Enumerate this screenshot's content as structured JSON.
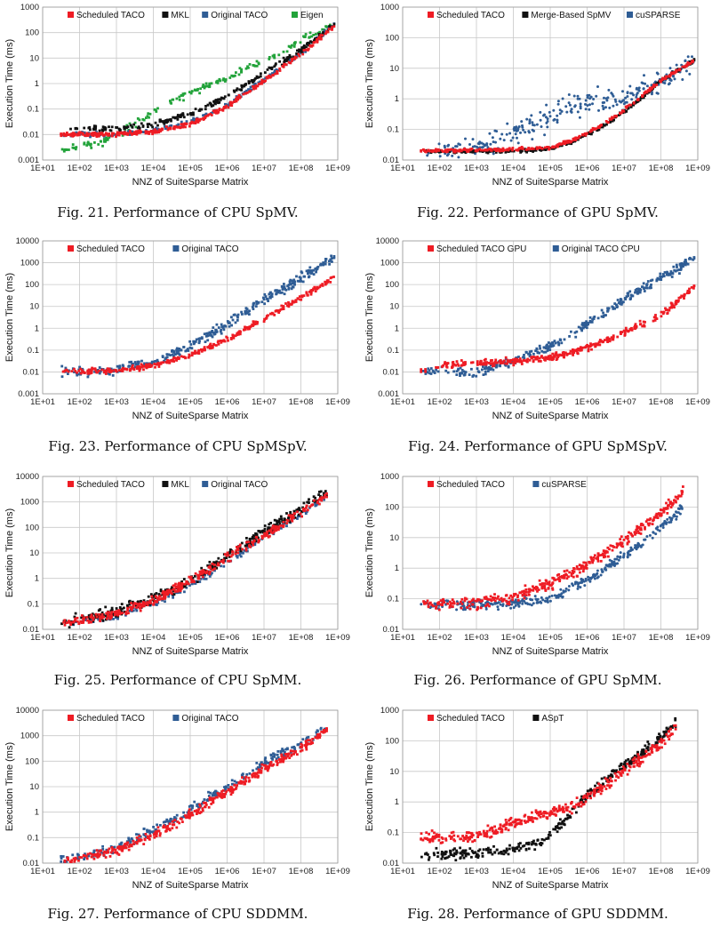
{
  "colors": {
    "red": "#ee1c24",
    "black": "#111111",
    "blue": "#2f5d95",
    "green": "#22a33a"
  },
  "chart_data": [
    {
      "type": "scatter",
      "id": "fig21",
      "caption": "Fig. 21.  Performance of CPU SpMV.",
      "xlabel": "NNZ of SuiteSparse Matrix",
      "ylabel": "Execution Time (ms)",
      "x_ticks": [
        "1E+01",
        "1E+02",
        "1E+03",
        "1E+04",
        "1E+05",
        "1E+06",
        "1E+07",
        "1E+08",
        "1E+09"
      ],
      "y_ticks": [
        "0.001",
        "0.01",
        "0.1",
        "1",
        "10",
        "100",
        "1000"
      ],
      "xlim_log10": [
        1,
        9
      ],
      "ylim_log10": [
        -3,
        3
      ],
      "series": [
        {
          "name": "Scheduled TACO",
          "color": "red",
          "marker": "square",
          "curve": [
            [
              1.5,
              -2.0
            ],
            [
              3,
              -1.98
            ],
            [
              4,
              -1.9
            ],
            [
              5,
              -1.6
            ],
            [
              6,
              -0.9
            ],
            [
              7,
              0.1
            ],
            [
              8,
              1.15
            ],
            [
              8.9,
              2.25
            ]
          ],
          "spread": 0.09,
          "n": 340
        },
        {
          "name": "MKL",
          "color": "black",
          "marker": "square",
          "curve": [
            [
              1.5,
              -1.78
            ],
            [
              3,
              -1.76
            ],
            [
              4,
              -1.6
            ],
            [
              5,
              -1.2
            ],
            [
              6,
              -0.5
            ],
            [
              7,
              0.4
            ],
            [
              8,
              1.3
            ],
            [
              8.9,
              2.3
            ]
          ],
          "spread": 0.1,
          "n": 240
        },
        {
          "name": "Original TACO",
          "color": "blue",
          "marker": "square",
          "curve": [
            [
              1.5,
              -2.0
            ],
            [
              3,
              -1.97
            ],
            [
              4,
              -1.85
            ],
            [
              5,
              -1.5
            ],
            [
              6,
              -0.85
            ],
            [
              7,
              0.15
            ],
            [
              8,
              1.2
            ],
            [
              8.9,
              2.3
            ]
          ],
          "spread": 0.09,
          "n": 200
        },
        {
          "name": "Eigen",
          "color": "green",
          "marker": "square",
          "curve": [
            [
              1.5,
              -2.55
            ],
            [
              2.6,
              -2.35
            ],
            [
              3.5,
              -1.6
            ],
            [
              4.2,
              -0.9
            ],
            [
              5,
              -0.35
            ],
            [
              6,
              0.2
            ],
            [
              7,
              0.9
            ],
            [
              8,
              1.7
            ],
            [
              8.9,
              2.4
            ]
          ],
          "spread": 0.14,
          "n": 170
        }
      ]
    },
    {
      "type": "scatter",
      "id": "fig22",
      "caption": "Fig. 22.  Performance of GPU SpMV.",
      "xlabel": "NNZ of SuiteSparse Matrix",
      "ylabel": "Execution Time (ms)",
      "x_ticks": [
        "1E+01",
        "1E+02",
        "1E+03",
        "1E+04",
        "1E+05",
        "1E+06",
        "1E+07",
        "1E+08",
        "1E+09"
      ],
      "y_ticks": [
        "0.01",
        "0.1",
        "1",
        "10",
        "100",
        "1000"
      ],
      "xlim_log10": [
        1,
        9
      ],
      "ylim_log10": [
        -2,
        3
      ],
      "series": [
        {
          "name": "Scheduled TACO",
          "color": "red",
          "marker": "square",
          "curve": [
            [
              1.5,
              -1.7
            ],
            [
              3,
              -1.68
            ],
            [
              4,
              -1.66
            ],
            [
              5,
              -1.6
            ],
            [
              5.7,
              -1.3
            ],
            [
              6.5,
              -0.8
            ],
            [
              7.3,
              -0.1
            ],
            [
              8,
              0.6
            ],
            [
              8.9,
              1.25
            ]
          ],
          "spread": 0.05,
          "n": 320
        },
        {
          "name": "Merge-Based SpMV",
          "color": "black",
          "marker": "square",
          "curve": [
            [
              1.5,
              -1.72
            ],
            [
              3,
              -1.72
            ],
            [
              4,
              -1.7
            ],
            [
              5,
              -1.65
            ],
            [
              5.7,
              -1.35
            ],
            [
              6.5,
              -0.85
            ],
            [
              7.3,
              -0.15
            ],
            [
              8,
              0.6
            ],
            [
              8.9,
              1.25
            ]
          ],
          "spread": 0.05,
          "n": 300
        },
        {
          "name": "cuSPARSE",
          "color": "blue",
          "marker": "circle",
          "curve": [
            [
              1.5,
              -1.72
            ],
            [
              3,
              -1.6
            ],
            [
              4,
              -1.2
            ],
            [
              5,
              -0.6
            ],
            [
              5.7,
              -0.2
            ],
            [
              6.3,
              -0.1
            ],
            [
              7,
              0.0
            ],
            [
              8,
              0.6
            ],
            [
              8.9,
              1.25
            ]
          ],
          "spread": 0.38,
          "n": 260
        }
      ]
    },
    {
      "type": "scatter",
      "id": "fig23",
      "caption": "Fig. 23.  Performance of CPU SpMSpV.",
      "xlabel": "NNZ of SuiteSparse Matrix",
      "ylabel": "Execution Time (ms)",
      "x_ticks": [
        "1E+01",
        "1E+02",
        "1E+03",
        "1E+04",
        "1E+05",
        "1E+06",
        "1E+07",
        "1E+08",
        "1E+09"
      ],
      "y_ticks": [
        "0.001",
        "0.01",
        "0.1",
        "1",
        "10",
        "100",
        "1000",
        "10000"
      ],
      "xlim_log10": [
        1,
        9
      ],
      "ylim_log10": [
        -3,
        4
      ],
      "series": [
        {
          "name": "Scheduled TACO",
          "color": "red",
          "marker": "square",
          "curve": [
            [
              1.5,
              -2.0
            ],
            [
              3,
              -1.95
            ],
            [
              4,
              -1.7
            ],
            [
              5,
              -1.25
            ],
            [
              6,
              -0.5
            ],
            [
              7,
              0.45
            ],
            [
              8,
              1.4
            ],
            [
              8.9,
              2.3
            ]
          ],
          "spread": 0.12,
          "n": 330
        },
        {
          "name": "Original TACO",
          "color": "blue",
          "marker": "square",
          "curve": [
            [
              1.5,
              -2.0
            ],
            [
              3,
              -1.95
            ],
            [
              4,
              -1.55
            ],
            [
              5,
              -0.8
            ],
            [
              6,
              0.2
            ],
            [
              7,
              1.3
            ],
            [
              8,
              2.3
            ],
            [
              8.9,
              3.2
            ]
          ],
          "spread": 0.22,
          "n": 330
        }
      ]
    },
    {
      "type": "scatter",
      "id": "fig24",
      "caption": "Fig. 24.  Performance of GPU SpMSpV.",
      "xlabel": "NNZ of SuiteSparse Matrix",
      "ylabel": "Execution Time (ms)",
      "x_ticks": [
        "1E+01",
        "1E+02",
        "1E+03",
        "1E+04",
        "1E+05",
        "1E+06",
        "1E+07",
        "1E+08",
        "1E+09"
      ],
      "y_ticks": [
        "0.001",
        "0.01",
        "0.1",
        "1",
        "10",
        "100",
        "1000",
        "10000"
      ],
      "xlim_log10": [
        1,
        9
      ],
      "ylim_log10": [
        -3,
        4
      ],
      "series": [
        {
          "name": "Scheduled TACO GPU",
          "color": "red",
          "marker": "square",
          "curve": [
            [
              1.5,
              -1.95
            ],
            [
              2,
              -1.75
            ],
            [
              3,
              -1.6
            ],
            [
              4,
              -1.5
            ],
            [
              5,
              -1.35
            ],
            [
              6,
              -0.9
            ],
            [
              7,
              -0.2
            ],
            [
              8,
              0.6
            ],
            [
              8.9,
              1.9
            ]
          ],
          "spread": 0.15,
          "n": 340
        },
        {
          "name": "Original TACO CPU",
          "color": "blue",
          "marker": "square",
          "curve": [
            [
              1.5,
              -2.0
            ],
            [
              3,
              -1.95
            ],
            [
              4,
              -1.55
            ],
            [
              5,
              -0.8
            ],
            [
              6,
              0.2
            ],
            [
              7,
              1.3
            ],
            [
              8,
              2.3
            ],
            [
              8.9,
              3.2
            ]
          ],
          "spread": 0.22,
          "n": 330
        }
      ]
    },
    {
      "type": "scatter",
      "id": "fig25",
      "caption": "Fig. 25.  Performance of CPU SpMM.",
      "xlabel": "NNZ of SuiteSparse Matrix",
      "ylabel": "Execution Time (ms)",
      "x_ticks": [
        "1E+01",
        "1E+02",
        "1E+03",
        "1E+04",
        "1E+05",
        "1E+06",
        "1E+07",
        "1E+08",
        "1E+09"
      ],
      "y_ticks": [
        "0.01",
        "0.1",
        "1",
        "10",
        "100",
        "1000",
        "10000"
      ],
      "xlim_log10": [
        1,
        9
      ],
      "ylim_log10": [
        -2,
        4
      ],
      "series": [
        {
          "name": "Scheduled TACO",
          "color": "red",
          "marker": "square",
          "curve": [
            [
              1.5,
              -1.8
            ],
            [
              3,
              -1.4
            ],
            [
              4,
              -0.9
            ],
            [
              5,
              -0.1
            ],
            [
              6,
              0.8
            ],
            [
              7,
              1.7
            ],
            [
              8,
              2.6
            ],
            [
              8.7,
              3.3
            ]
          ],
          "spread": 0.18,
          "n": 360
        },
        {
          "name": "MKL",
          "color": "black",
          "marker": "square",
          "curve": [
            [
              1.5,
              -1.7
            ],
            [
              3,
              -1.3
            ],
            [
              4,
              -0.8
            ],
            [
              5,
              -0.1
            ],
            [
              6,
              0.9
            ],
            [
              7,
              1.8
            ],
            [
              8,
              2.7
            ],
            [
              8.7,
              3.4
            ]
          ],
          "spread": 0.2,
          "n": 340
        },
        {
          "name": "Original TACO",
          "color": "blue",
          "marker": "square",
          "curve": [
            [
              1.5,
              -1.8
            ],
            [
              3,
              -1.5
            ],
            [
              4,
              -1.0
            ],
            [
              5,
              -0.3
            ],
            [
              6,
              0.6
            ],
            [
              7,
              1.6
            ],
            [
              8,
              2.5
            ],
            [
              8.7,
              3.2
            ]
          ],
          "spread": 0.14,
          "n": 140
        }
      ]
    },
    {
      "type": "scatter",
      "id": "fig26",
      "caption": "Fig. 26.  Performance of GPU SpMM.",
      "xlabel": "NNZ of SuiteSparse Matrix",
      "ylabel": "Execution Time (ms)",
      "x_ticks": [
        "1E+01",
        "1E+02",
        "1E+03",
        "1E+04",
        "1E+05",
        "1E+06",
        "1E+07",
        "1E+08",
        "1E+09"
      ],
      "y_ticks": [
        "0.01",
        "0.1",
        "1",
        "10",
        "100",
        "1000"
      ],
      "xlim_log10": [
        1,
        9
      ],
      "ylim_log10": [
        -2,
        3
      ],
      "series": [
        {
          "name": "Scheduled TACO",
          "color": "red",
          "marker": "square",
          "curve": [
            [
              1.5,
              -1.18
            ],
            [
              3,
              -1.15
            ],
            [
              4,
              -0.95
            ],
            [
              5,
              -0.5
            ],
            [
              6,
              0.1
            ],
            [
              7,
              0.9
            ],
            [
              8,
              1.8
            ],
            [
              8.6,
              2.5
            ]
          ],
          "spread": 0.18,
          "n": 380
        },
        {
          "name": "cuSPARSE",
          "color": "blue",
          "marker": "circle",
          "curve": [
            [
              1.5,
              -1.18
            ],
            [
              3,
              -1.18
            ],
            [
              4,
              -1.15
            ],
            [
              5,
              -1.0
            ],
            [
              6,
              -0.4
            ],
            [
              7,
              0.4
            ],
            [
              8,
              1.3
            ],
            [
              8.6,
              2.0
            ]
          ],
          "spread": 0.14,
          "n": 330
        }
      ]
    },
    {
      "type": "scatter",
      "id": "fig27",
      "caption": "Fig. 27.  Performance of CPU SDDMM.",
      "xlabel": "NNZ of SuiteSparse Matrix",
      "ylabel": "Execution Time (ms)",
      "x_ticks": [
        "1E+01",
        "1E+02",
        "1E+03",
        "1E+04",
        "1E+05",
        "1E+06",
        "1E+07",
        "1E+08",
        "1E+09"
      ],
      "y_ticks": [
        "0.01",
        "0.1",
        "1",
        "10",
        "100",
        "1000",
        "10000"
      ],
      "xlim_log10": [
        1,
        9
      ],
      "ylim_log10": [
        -2,
        4
      ],
      "series": [
        {
          "name": "Scheduled TACO",
          "color": "red",
          "marker": "square",
          "curve": [
            [
              1.5,
              -1.95
            ],
            [
              3,
              -1.5
            ],
            [
              4,
              -0.9
            ],
            [
              5,
              -0.1
            ],
            [
              6,
              0.8
            ],
            [
              7,
              1.7
            ],
            [
              8,
              2.5
            ],
            [
              8.7,
              3.2
            ]
          ],
          "spread": 0.17,
          "n": 380
        },
        {
          "name": "Original TACO",
          "color": "blue",
          "marker": "square",
          "curve": [
            [
              1.5,
              -1.95
            ],
            [
              3,
              -1.4
            ],
            [
              4,
              -0.7
            ],
            [
              5,
              0.1
            ],
            [
              6,
              1.0
            ],
            [
              7,
              1.9
            ],
            [
              8,
              2.7
            ],
            [
              8.7,
              3.3
            ]
          ],
          "spread": 0.2,
          "n": 260
        }
      ]
    },
    {
      "type": "scatter",
      "id": "fig28",
      "caption": "Fig. 28.  Performance of GPU SDDMM.",
      "xlabel": "NNZ of SuiteSparse Matrix",
      "ylabel": "Execution Time (ms)",
      "x_ticks": [
        "1E+01",
        "1E+02",
        "1E+03",
        "1E+04",
        "1E+05",
        "1E+06",
        "1E+07",
        "1E+08",
        "1E+09"
      ],
      "y_ticks": [
        "0.01",
        "0.1",
        "1",
        "10",
        "100",
        "1000"
      ],
      "xlim_log10": [
        1,
        9
      ],
      "ylim_log10": [
        -2,
        3
      ],
      "series": [
        {
          "name": "Scheduled TACO",
          "color": "red",
          "marker": "square",
          "curve": [
            [
              1.5,
              -1.18
            ],
            [
              3,
              -1.12
            ],
            [
              4,
              -0.7
            ],
            [
              4.8,
              -0.4
            ],
            [
              5.5,
              -0.2
            ],
            [
              6,
              0.15
            ],
            [
              7,
              1.0
            ],
            [
              8,
              1.9
            ],
            [
              8.4,
              2.4
            ]
          ],
          "spread": 0.18,
          "n": 380
        },
        {
          "name": "ASpT",
          "color": "black",
          "marker": "square",
          "curve": [
            [
              1.5,
              -1.7
            ],
            [
              3,
              -1.7
            ],
            [
              4,
              -1.55
            ],
            [
              4.8,
              -1.3
            ],
            [
              5.5,
              -0.5
            ],
            [
              6,
              0.2
            ],
            [
              7,
              1.2
            ],
            [
              8,
              2.1
            ],
            [
              8.4,
              2.6
            ]
          ],
          "spread": 0.15,
          "n": 330
        }
      ]
    }
  ]
}
